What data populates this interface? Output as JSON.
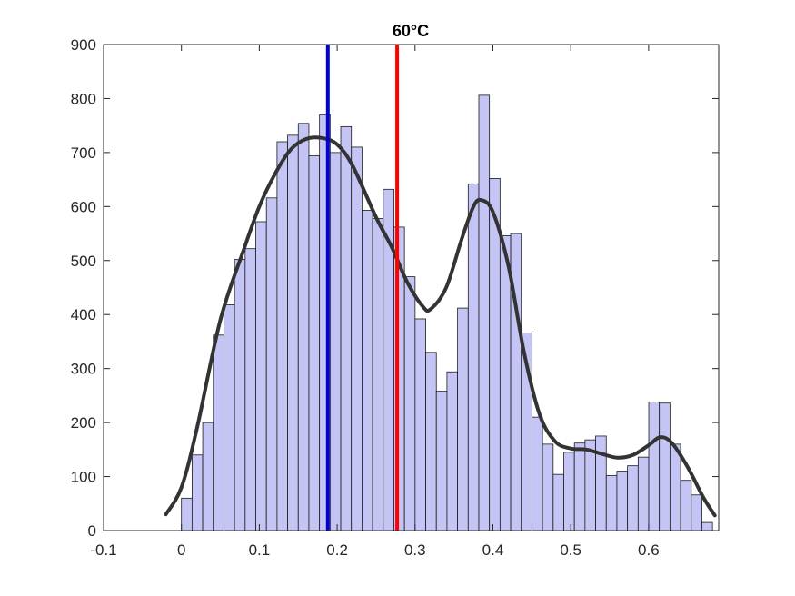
{
  "chart_data": {
    "type": "bar",
    "title": "60°C",
    "xlabel": "",
    "ylabel": "",
    "xlim": [
      -0.1,
      0.69
    ],
    "ylim": [
      0,
      900
    ],
    "xticks": [
      -0.1,
      0,
      0.1,
      0.2,
      0.3,
      0.4,
      0.5,
      0.6
    ],
    "xtick_labels": [
      "-0.1",
      "0",
      "0.1",
      "0.2",
      "0.3",
      "0.4",
      "0.5",
      "0.6"
    ],
    "yticks": [
      0,
      100,
      200,
      300,
      400,
      500,
      600,
      700,
      800,
      900
    ],
    "ytick_labels": [
      "0",
      "100",
      "200",
      "300",
      "400",
      "500",
      "600",
      "700",
      "800",
      "900"
    ],
    "grid": false,
    "histogram": {
      "bin_start": 0,
      "bin_width": 0.01364,
      "counts": [
        60,
        140,
        200,
        362,
        418,
        502,
        522,
        572,
        616,
        720,
        732,
        754,
        694,
        770,
        700,
        748,
        710,
        593,
        578,
        632,
        562,
        470,
        392,
        330,
        258,
        294,
        412,
        642,
        806,
        652,
        546,
        550,
        366,
        210,
        160,
        104,
        145,
        162,
        168,
        175,
        102,
        110,
        120,
        136,
        238,
        236,
        160,
        93,
        66,
        15
      ]
    },
    "density_curve": {
      "x": [
        -0.02,
        0.0,
        0.02,
        0.05,
        0.08,
        0.1,
        0.12,
        0.14,
        0.16,
        0.18,
        0.2,
        0.22,
        0.25,
        0.27,
        0.29,
        0.31,
        0.32,
        0.34,
        0.36,
        0.375,
        0.385,
        0.4,
        0.42,
        0.44,
        0.46,
        0.48,
        0.5,
        0.52,
        0.54,
        0.56,
        0.58,
        0.6,
        0.615,
        0.63,
        0.65,
        0.67,
        0.685
      ],
      "y": [
        30,
        80,
        190,
        390,
        520,
        600,
        660,
        705,
        725,
        727,
        715,
        675,
        580,
        525,
        460,
        415,
        410,
        450,
        540,
        600,
        612,
        590,
        490,
        330,
        215,
        165,
        152,
        150,
        142,
        135,
        140,
        158,
        173,
        162,
        118,
        62,
        28
      ]
    },
    "vertical_lines": [
      {
        "x": 0.188,
        "color": "#0000d0"
      },
      {
        "x": 0.277,
        "color": "#ff0000"
      }
    ],
    "colors": {
      "bar_fill": "#c5c5f5",
      "bar_edge": "#1a1a1a",
      "curve": "#333333",
      "axes": "#262626"
    }
  }
}
